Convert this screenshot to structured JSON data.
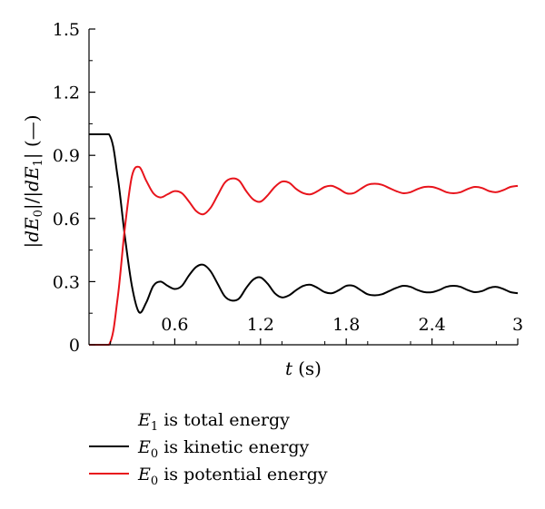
{
  "chart_data": {
    "type": "line",
    "xlabel_var": "t",
    "xlabel_unit": "(s)",
    "ylabel_parts": [
      "|",
      "dE",
      "0",
      "|/|",
      "dE",
      "1",
      "| (—)"
    ],
    "xlim": [
      0,
      3
    ],
    "ylim": [
      0,
      1.5
    ],
    "x_ticks": [
      0.6,
      1.2,
      1.8,
      2.4,
      3
    ],
    "x_tick_labels": [
      "0.6",
      "1.2",
      "1.8",
      "2.4",
      "3"
    ],
    "y_ticks": [
      0,
      0.3,
      0.6,
      0.9,
      1.2,
      1.5
    ],
    "y_tick_labels": [
      "0",
      "0.3",
      "0.6",
      "0.9",
      "1.2",
      "1.5"
    ],
    "grid": false,
    "legend_position": "bottom",
    "legend": {
      "header": {
        "symbol": "E",
        "sub": "1",
        "text": " is total energy"
      },
      "entries": [
        {
          "symbol": "E",
          "sub": "0",
          "text": " is kinetic energy",
          "color": "#000000"
        },
        {
          "symbol": "E",
          "sub": "0",
          "text": " is potential energy",
          "color": "#e8141c"
        }
      ]
    },
    "series": [
      {
        "color": "#000000",
        "x": [
          0,
          0.14,
          0.2,
          0.25,
          0.3,
          0.35,
          0.4,
          0.45,
          0.5,
          0.55,
          0.6,
          0.65,
          0.7,
          0.75,
          0.8,
          0.85,
          0.9,
          0.95,
          1.0,
          1.05,
          1.1,
          1.15,
          1.2,
          1.25,
          1.3,
          1.35,
          1.4,
          1.45,
          1.5,
          1.55,
          1.6,
          1.65,
          1.7,
          1.75,
          1.8,
          1.85,
          1.9,
          1.95,
          2.0,
          2.05,
          2.1,
          2.15,
          2.2,
          2.25,
          2.3,
          2.35,
          2.4,
          2.45,
          2.5,
          2.55,
          2.6,
          2.65,
          2.7,
          2.75,
          2.8,
          2.85,
          2.9,
          2.95,
          3.0
        ],
        "y": [
          1.0,
          1.0,
          0.8,
          0.52,
          0.28,
          0.155,
          0.2,
          0.28,
          0.3,
          0.28,
          0.265,
          0.28,
          0.33,
          0.37,
          0.38,
          0.35,
          0.29,
          0.23,
          0.21,
          0.22,
          0.27,
          0.31,
          0.32,
          0.29,
          0.245,
          0.225,
          0.235,
          0.26,
          0.28,
          0.285,
          0.27,
          0.25,
          0.245,
          0.26,
          0.28,
          0.28,
          0.26,
          0.24,
          0.235,
          0.24,
          0.255,
          0.27,
          0.28,
          0.275,
          0.26,
          0.25,
          0.25,
          0.26,
          0.275,
          0.28,
          0.275,
          0.26,
          0.25,
          0.255,
          0.27,
          0.275,
          0.265,
          0.25,
          0.245
        ]
      },
      {
        "color": "#e8141c",
        "x": [
          0,
          0.14,
          0.2,
          0.25,
          0.3,
          0.35,
          0.4,
          0.45,
          0.5,
          0.55,
          0.6,
          0.65,
          0.7,
          0.75,
          0.8,
          0.85,
          0.9,
          0.95,
          1.0,
          1.05,
          1.1,
          1.15,
          1.2,
          1.25,
          1.3,
          1.35,
          1.4,
          1.45,
          1.5,
          1.55,
          1.6,
          1.65,
          1.7,
          1.75,
          1.8,
          1.85,
          1.9,
          1.95,
          2.0,
          2.05,
          2.1,
          2.15,
          2.2,
          2.25,
          2.3,
          2.35,
          2.4,
          2.45,
          2.5,
          2.55,
          2.6,
          2.65,
          2.7,
          2.75,
          2.8,
          2.85,
          2.9,
          2.95,
          3.0
        ],
        "y": [
          0.0,
          0.0,
          0.22,
          0.55,
          0.8,
          0.845,
          0.78,
          0.72,
          0.7,
          0.715,
          0.73,
          0.72,
          0.68,
          0.635,
          0.62,
          0.65,
          0.71,
          0.77,
          0.79,
          0.78,
          0.73,
          0.69,
          0.68,
          0.71,
          0.75,
          0.775,
          0.77,
          0.74,
          0.72,
          0.715,
          0.73,
          0.75,
          0.755,
          0.74,
          0.72,
          0.72,
          0.74,
          0.76,
          0.765,
          0.76,
          0.745,
          0.73,
          0.72,
          0.725,
          0.74,
          0.75,
          0.75,
          0.74,
          0.725,
          0.72,
          0.725,
          0.74,
          0.75,
          0.745,
          0.73,
          0.725,
          0.735,
          0.75,
          0.755
        ]
      }
    ]
  }
}
